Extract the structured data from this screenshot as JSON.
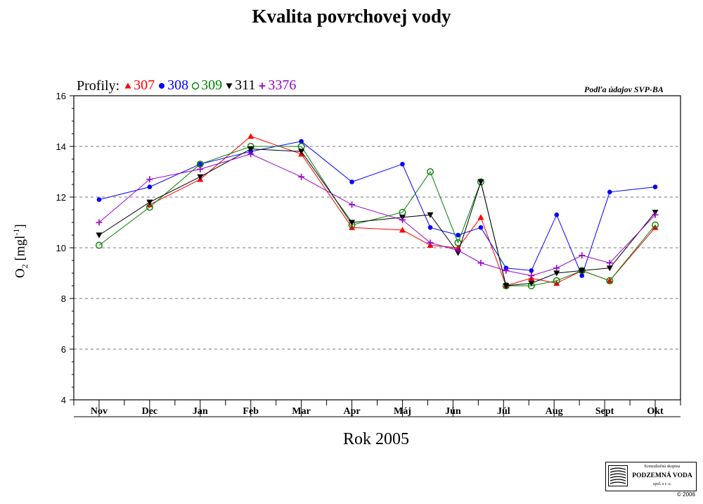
{
  "title": "Kvalita povrchovej vody",
  "legend_prefix": "Profily:",
  "source_note": "Podľa údajov SVP-BA",
  "xlabel": "Rok 2005",
  "ylabel": {
    "main": "O",
    "sub": "2",
    "unit_open": " [mgl",
    "unit_sup": "-1",
    "unit_close": "]"
  },
  "logo": {
    "top": "Konzultačná skupina",
    "name": "PODZEMNÁ VODA",
    "sub": "spol. s r. o."
  },
  "copyright": "© 2006",
  "chart_data": {
    "type": "line",
    "categories": [
      "Nov",
      "Dec",
      "Jan",
      "Feb",
      "Mar",
      "Apr",
      "Máj",
      "Jún",
      "Júl",
      "Aug",
      "Sept",
      "Okt"
    ],
    "ylim": [
      4,
      16
    ],
    "yticks": [
      4,
      6,
      8,
      10,
      12,
      14,
      16
    ],
    "grid": "dashed horizontal",
    "legend_position": "top-left",
    "series": [
      {
        "name": "307",
        "color": "#ff0000",
        "marker": "triangle-up",
        "points": [
          [
            0.5,
            null
          ],
          [
            1.5,
            11.7
          ],
          [
            2.5,
            12.7
          ],
          [
            3.5,
            14.4
          ],
          [
            4.5,
            13.7
          ],
          [
            5.5,
            10.8
          ],
          [
            6.5,
            10.7
          ],
          [
            7.05,
            10.1
          ],
          [
            7.6,
            10.0
          ],
          [
            8.05,
            11.2
          ],
          [
            8.55,
            8.5
          ],
          [
            9.05,
            8.8
          ],
          [
            9.55,
            8.6
          ],
          [
            10.05,
            9.1
          ],
          [
            10.6,
            8.7
          ],
          [
            11.5,
            10.8
          ]
        ]
      },
      {
        "name": "308",
        "color": "#0000ff",
        "marker": "dot",
        "points": [
          [
            0.5,
            11.9
          ],
          [
            1.5,
            12.4
          ],
          [
            2.5,
            13.3
          ],
          [
            3.5,
            13.8
          ],
          [
            4.5,
            14.2
          ],
          [
            5.5,
            12.6
          ],
          [
            6.5,
            13.3
          ],
          [
            7.05,
            10.8
          ],
          [
            7.6,
            10.5
          ],
          [
            8.05,
            10.8
          ],
          [
            8.55,
            9.2
          ],
          [
            9.05,
            9.1
          ],
          [
            9.55,
            11.3
          ],
          [
            10.05,
            8.9
          ],
          [
            10.6,
            12.2
          ],
          [
            11.5,
            12.4
          ]
        ]
      },
      {
        "name": "309",
        "color": "#008000",
        "marker": "circle-open",
        "points": [
          [
            0.5,
            10.1
          ],
          [
            1.5,
            11.6
          ],
          [
            2.5,
            13.3
          ],
          [
            3.5,
            14.0
          ],
          [
            4.5,
            14.0
          ],
          [
            5.5,
            10.9
          ],
          [
            6.5,
            11.4
          ],
          [
            7.05,
            13.0
          ],
          [
            7.6,
            10.2
          ],
          [
            8.05,
            12.6
          ],
          [
            8.55,
            8.5
          ],
          [
            9.05,
            8.5
          ],
          [
            9.55,
            8.7
          ],
          [
            10.05,
            9.1
          ],
          [
            10.6,
            8.7
          ],
          [
            11.5,
            10.9
          ]
        ]
      },
      {
        "name": "311",
        "color": "#000000",
        "marker": "triangle-down",
        "points": [
          [
            0.5,
            10.5
          ],
          [
            1.5,
            11.8
          ],
          [
            2.5,
            12.8
          ],
          [
            3.5,
            13.9
          ],
          [
            4.5,
            13.8
          ],
          [
            5.5,
            11.0
          ],
          [
            6.5,
            11.2
          ],
          [
            7.05,
            11.3
          ],
          [
            7.6,
            9.8
          ],
          [
            8.05,
            12.6
          ],
          [
            8.55,
            8.5
          ],
          [
            9.05,
            8.6
          ],
          [
            9.55,
            9.0
          ],
          [
            10.05,
            9.1
          ],
          [
            10.6,
            9.2
          ],
          [
            11.5,
            11.4
          ]
        ]
      },
      {
        "name": "3376",
        "color": "#9900cc",
        "marker": "plus",
        "points": [
          [
            0.5,
            11.0
          ],
          [
            1.5,
            12.7
          ],
          [
            2.5,
            13.1
          ],
          [
            3.5,
            13.7
          ],
          [
            4.5,
            12.8
          ],
          [
            5.5,
            11.7
          ],
          [
            6.5,
            11.1
          ],
          [
            7.05,
            10.2
          ],
          [
            7.6,
            9.9
          ],
          [
            8.05,
            9.4
          ],
          [
            8.55,
            9.1
          ],
          [
            9.05,
            8.9
          ],
          [
            9.55,
            9.2
          ],
          [
            10.05,
            9.7
          ],
          [
            10.6,
            9.4
          ],
          [
            11.5,
            11.3
          ]
        ]
      }
    ]
  }
}
